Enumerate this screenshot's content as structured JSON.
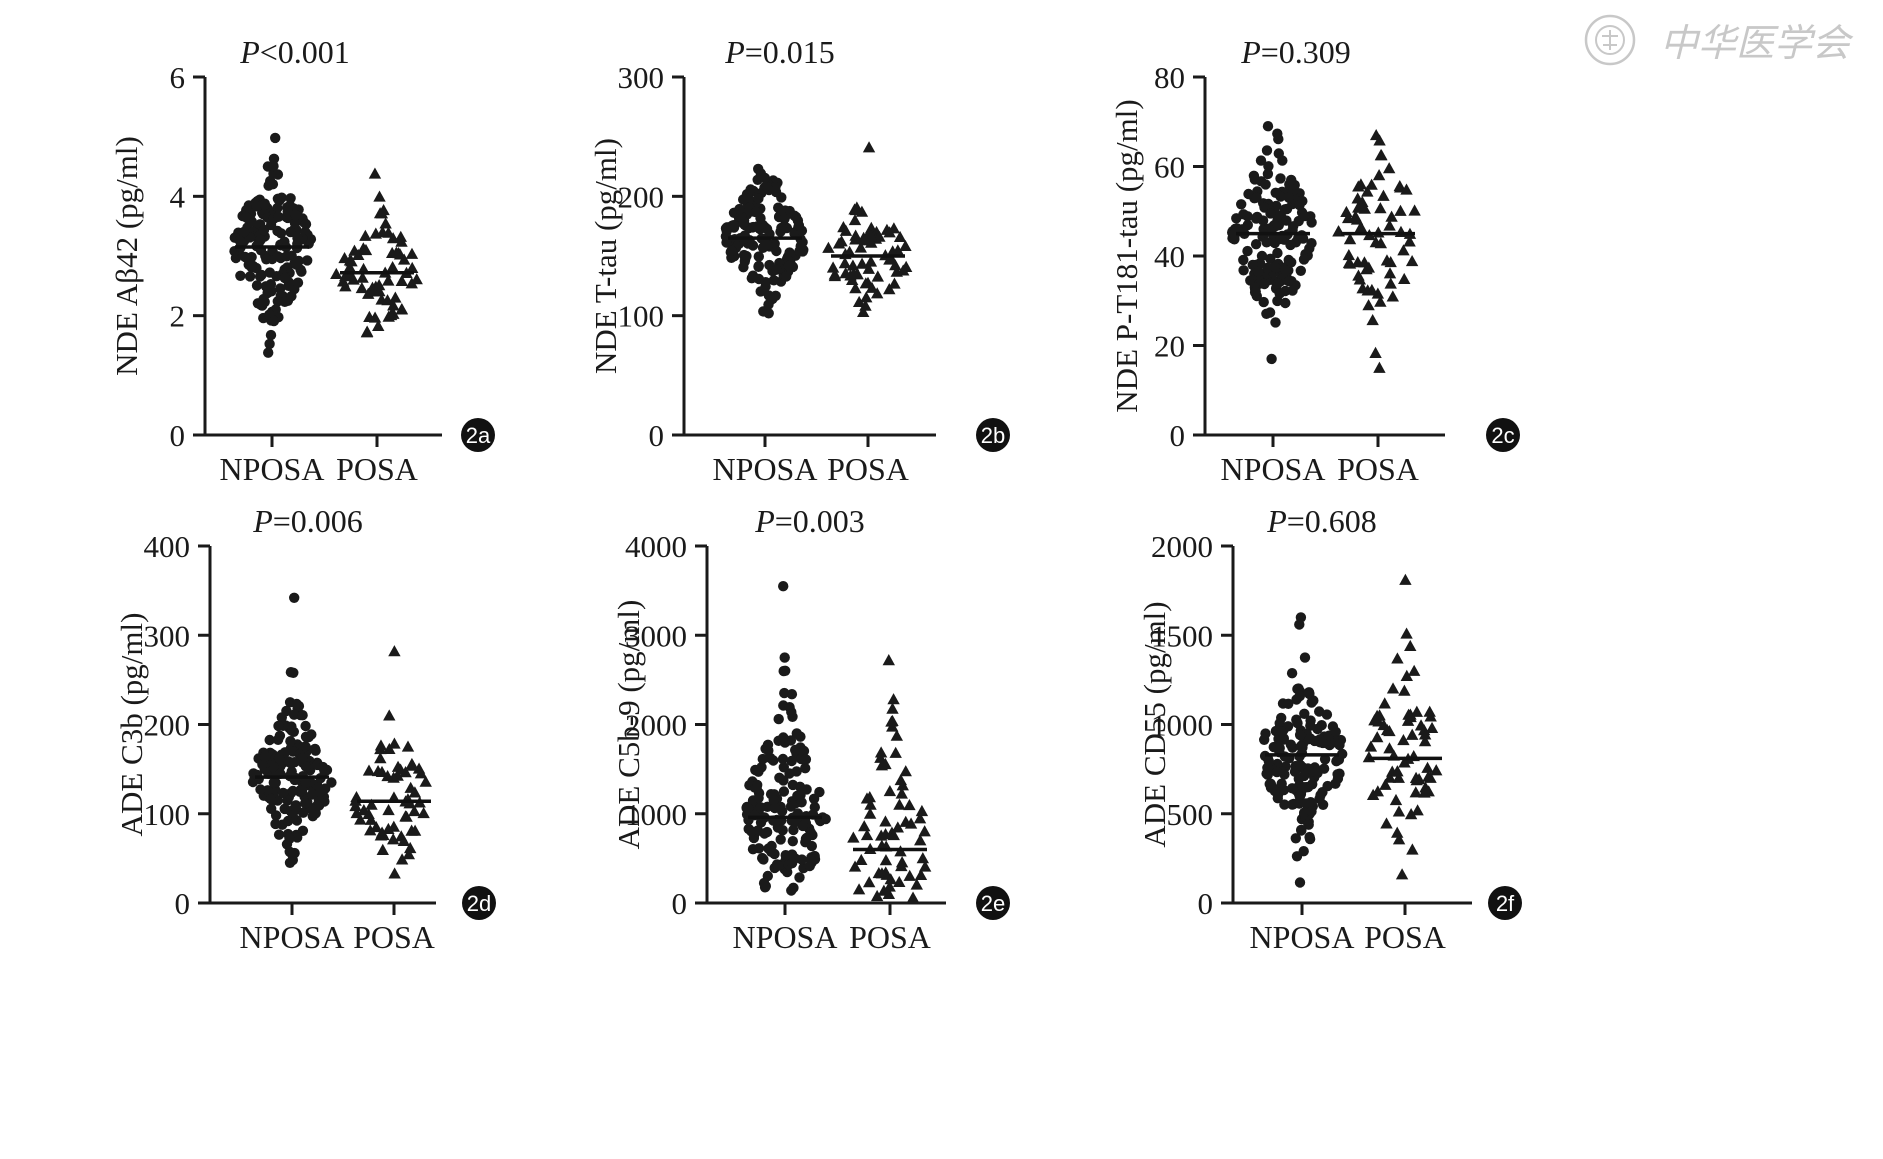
{
  "watermark": {
    "text": "中华医学会",
    "seal_icon": "seal-icon"
  },
  "colors": {
    "ink": "#1a1a1a",
    "badge": "#111111",
    "watermark": "#c8c8c8"
  },
  "chart_data": [
    {
      "panel": "2a",
      "type": "scatter",
      "title_prefix": "P",
      "title_rest": "<0.001",
      "ylabel": "NDE Aβ42 (pg/ml)",
      "ylim": [
        0,
        6
      ],
      "yticks": [
        "0",
        "2",
        "4",
        "6"
      ],
      "ytick_values": [
        0,
        2,
        4,
        6
      ],
      "categories": [
        "NPOSA",
        "POSA"
      ],
      "series": [
        {
          "name": "NPOSA",
          "marker": "circle",
          "n": 160,
          "mean": 3.15,
          "min": 1.38,
          "max": 4.98,
          "spread": 0.65
        },
        {
          "name": "POSA",
          "marker": "triangle",
          "n": 65,
          "mean": 2.72,
          "min": 1.72,
          "max": 4.38,
          "spread": 0.6
        }
      ]
    },
    {
      "panel": "2b",
      "type": "scatter",
      "title_prefix": "P",
      "title_rest": "=0.015",
      "ylabel": "NDE T-tau (pg/ml)",
      "ylim": [
        0,
        300
      ],
      "yticks": [
        "0",
        "100",
        "200",
        "300"
      ],
      "ytick_values": [
        0,
        100,
        200,
        300
      ],
      "categories": [
        "NPOSA",
        "POSA"
      ],
      "series": [
        {
          "name": "NPOSA",
          "marker": "circle",
          "n": 160,
          "mean": 165,
          "min": 102,
          "max": 223,
          "spread": 28
        },
        {
          "name": "POSA",
          "marker": "triangle",
          "n": 65,
          "mean": 150,
          "min": 103,
          "max": 241,
          "spread": 25
        }
      ]
    },
    {
      "panel": "2c",
      "type": "scatter",
      "title_prefix": "P",
      "title_rest": "=0.309",
      "ylabel": "NDE P-T181-tau (pg/ml)",
      "ylim": [
        0,
        80
      ],
      "yticks": [
        "0",
        "20",
        "40",
        "60",
        "80"
      ],
      "ytick_values": [
        0,
        20,
        40,
        60,
        80
      ],
      "categories": [
        "NPOSA",
        "POSA"
      ],
      "series": [
        {
          "name": "NPOSA",
          "marker": "circle",
          "n": 160,
          "mean": 45,
          "min": 17,
          "max": 69,
          "spread": 10
        },
        {
          "name": "POSA",
          "marker": "triangle",
          "n": 65,
          "mean": 45,
          "min": 15,
          "max": 67,
          "spread": 11
        }
      ]
    },
    {
      "panel": "2d",
      "type": "scatter",
      "title_prefix": "P",
      "title_rest": "=0.006",
      "ylabel": "ADE C3b (pg/ml)",
      "ylim": [
        0,
        400
      ],
      "yticks": [
        "0",
        "100",
        "200",
        "300",
        "400"
      ],
      "ytick_values": [
        0,
        100,
        200,
        300,
        400
      ],
      "categories": [
        "NPOSA",
        "POSA"
      ],
      "series": [
        {
          "name": "NPOSA",
          "marker": "circle",
          "n": 160,
          "mean": 141,
          "min": 45,
          "max": 342,
          "spread": 40
        },
        {
          "name": "POSA",
          "marker": "triangle",
          "n": 60,
          "mean": 114,
          "min": 33,
          "max": 282,
          "spread": 40
        }
      ]
    },
    {
      "panel": "2e",
      "type": "scatter",
      "title_prefix": "P",
      "title_rest": "=0.003",
      "ylabel": "ADE C5b-9 (pg/ml)",
      "ylim": [
        0,
        4000
      ],
      "yticks": [
        "0",
        "1000",
        "2000",
        "3000",
        "4000"
      ],
      "ytick_values": [
        0,
        1000,
        2000,
        3000,
        4000
      ],
      "categories": [
        "NPOSA",
        "POSA"
      ],
      "series": [
        {
          "name": "NPOSA",
          "marker": "circle",
          "n": 160,
          "mean": 960,
          "min": 140,
          "max": 3550,
          "spread": 650
        },
        {
          "name": "POSA",
          "marker": "triangle",
          "n": 65,
          "mean": 600,
          "min": 60,
          "max": 2720,
          "spread": 600
        }
      ]
    },
    {
      "panel": "2f",
      "type": "scatter",
      "title_prefix": "P",
      "title_rest": "=0.608",
      "ylabel": "ADE CD55 (pg/ml)",
      "ylim": [
        0,
        2000
      ],
      "yticks": [
        "0",
        "500",
        "1000",
        "1500",
        "2000"
      ],
      "ytick_values": [
        0,
        500,
        1000,
        1500,
        2000
      ],
      "categories": [
        "NPOSA",
        "POSA"
      ],
      "series": [
        {
          "name": "NPOSA",
          "marker": "circle",
          "n": 160,
          "mean": 830,
          "min": 115,
          "max": 1600,
          "spread": 250
        },
        {
          "name": "POSA",
          "marker": "triangle",
          "n": 65,
          "mean": 810,
          "min": 160,
          "max": 1810,
          "spread": 280
        }
      ]
    }
  ]
}
